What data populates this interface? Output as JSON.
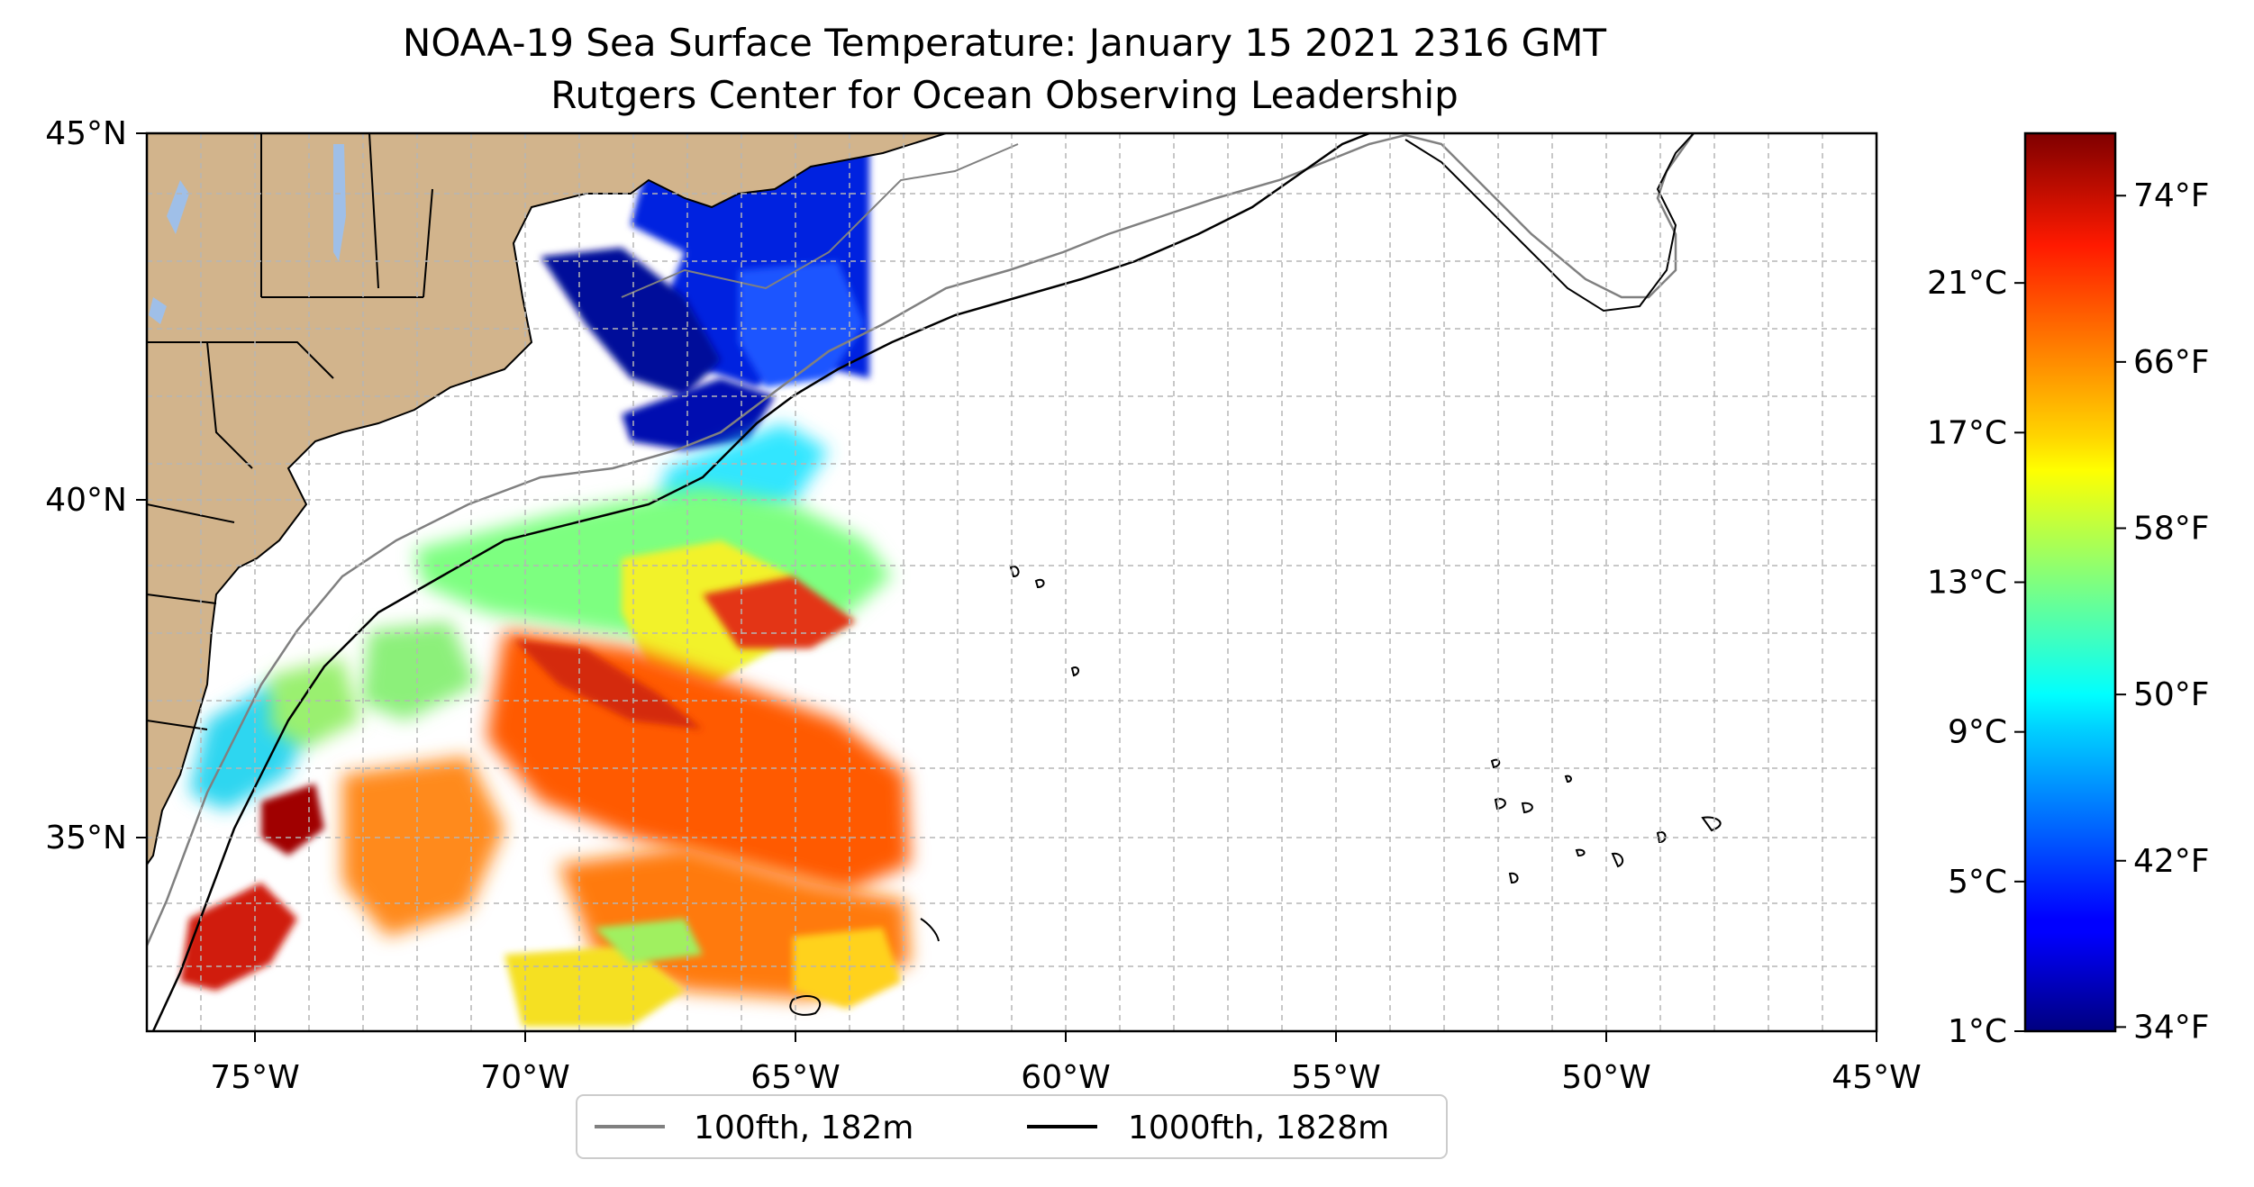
{
  "title": {
    "line1": "NOAA-19 Sea Surface Temperature: January 15 2021 2316 GMT",
    "line2": "Rutgers Center for Ocean Observing Leadership"
  },
  "map": {
    "lon_range": [
      -77,
      -45
    ],
    "lat_range": [
      32.2,
      45
    ],
    "lon_ticks": [
      {
        "lon": -75,
        "label": "75°W"
      },
      {
        "lon": -70,
        "label": "70°W"
      },
      {
        "lon": -65,
        "label": "65°W"
      },
      {
        "lon": -60,
        "label": "60°W"
      },
      {
        "lon": -55,
        "label": "55°W"
      },
      {
        "lon": -50,
        "label": "50°W"
      },
      {
        "lon": -45,
        "label": "45°W"
      }
    ],
    "lat_ticks": [
      {
        "lat": 45,
        "label": "45°N"
      },
      {
        "lat": 40,
        "label": "40°N"
      },
      {
        "lat": 35,
        "label": "35°N"
      }
    ],
    "gridlines": "dashed, 1° spacing",
    "land_color": "#d2b48c",
    "lake_color": "#9fbfe8",
    "ocean_color": "#ffffff"
  },
  "legend": {
    "position": "bottom center, below map",
    "entries": [
      {
        "label": "100fth, 182m",
        "color": "#808080"
      },
      {
        "label": "1000fth, 1828m",
        "color": "#000000"
      }
    ]
  },
  "colorbar": {
    "colormap": "jet",
    "range_f": [
      33.8,
      77
    ],
    "celsius_ticks": [
      {
        "value_f": 33.8,
        "label": "1°C"
      },
      {
        "value_f": 41.0,
        "label": "5°C"
      },
      {
        "value_f": 48.2,
        "label": "9°C"
      },
      {
        "value_f": 55.4,
        "label": "13°C"
      },
      {
        "value_f": 62.6,
        "label": "17°C"
      },
      {
        "value_f": 69.8,
        "label": "21°C"
      }
    ],
    "fahrenheit_ticks": [
      {
        "value_f": 34,
        "label": "34°F"
      },
      {
        "value_f": 42,
        "label": "42°F"
      },
      {
        "value_f": 50,
        "label": "50°F"
      },
      {
        "value_f": 58,
        "label": "58°F"
      },
      {
        "value_f": 66,
        "label": "66°F"
      },
      {
        "value_f": 74,
        "label": "74°F"
      }
    ]
  }
}
